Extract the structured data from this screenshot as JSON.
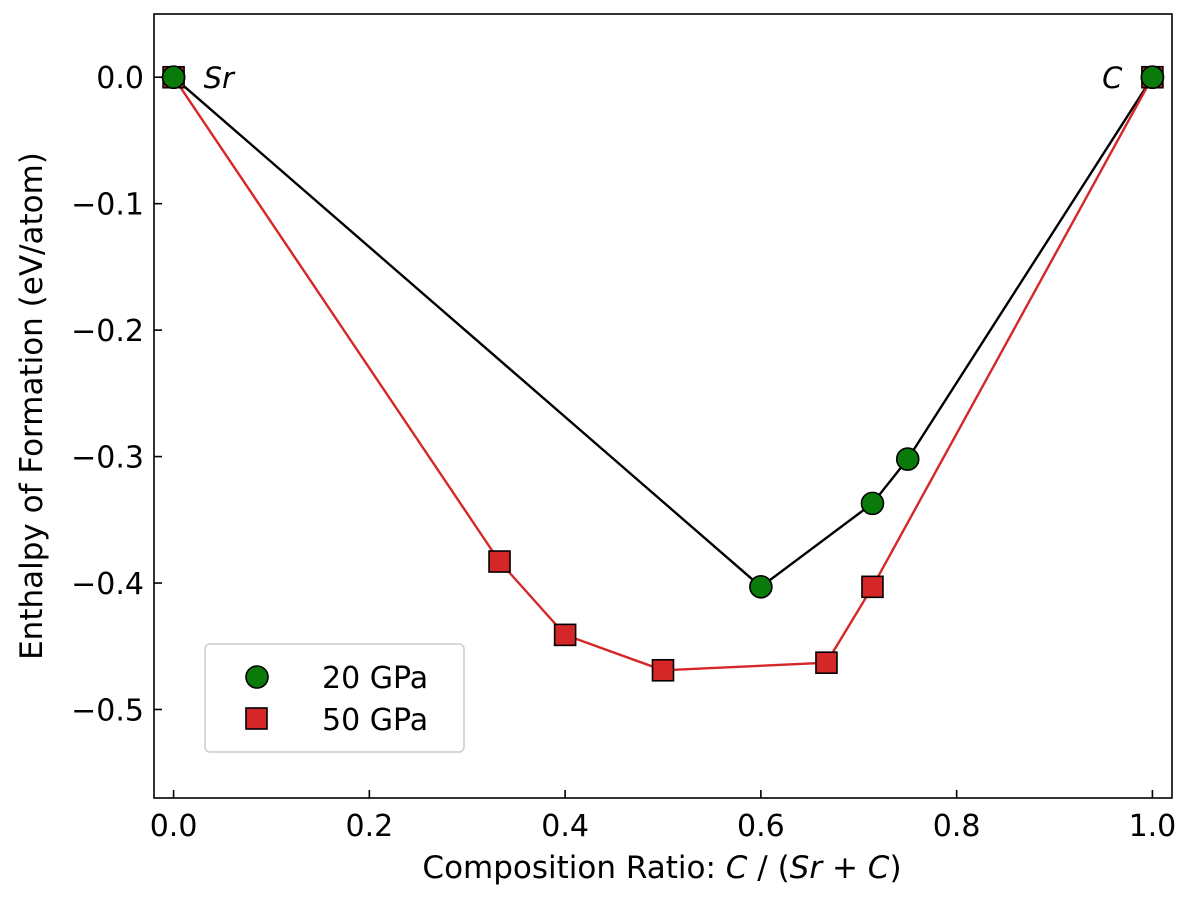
{
  "chart_data": {
    "type": "line",
    "title": "",
    "xlabel": {
      "prefix": "Composition Ratio: ",
      "numerator": "C",
      "sep": " / (",
      "a": "Sr",
      "op": " + ",
      "b": "C",
      "close": ")"
    },
    "ylabel": "Enthalpy of Formation (eV/atom)",
    "xlim": [
      -0.02,
      1.02
    ],
    "ylim": [
      -0.57,
      0.05
    ],
    "xticks": [
      0.0,
      0.2,
      0.4,
      0.6,
      0.8,
      1.0
    ],
    "xtick_labels": [
      "0.0",
      "0.2",
      "0.4",
      "0.6",
      "0.8",
      "1.0"
    ],
    "yticks": [
      0.0,
      -0.1,
      -0.2,
      -0.3,
      -0.4,
      -0.5
    ],
    "ytick_labels": [
      "0.0",
      "−0.1",
      "−0.2",
      "−0.3",
      "−0.4",
      "−0.5"
    ],
    "grid": false,
    "legend_position": "lower-left",
    "annotations": [
      {
        "text": "Sr",
        "x": 0.0,
        "y": 0.0
      },
      {
        "text": "C",
        "x": 1.0,
        "y": 0.0
      }
    ],
    "series": [
      {
        "name": "20 GPa",
        "marker": "circle",
        "color": "#0a7a0a",
        "line_color": "#000000",
        "x": [
          0.0,
          0.6,
          0.714,
          0.75,
          1.0
        ],
        "y": [
          0.0,
          -0.403,
          -0.337,
          -0.302,
          0.0
        ]
      },
      {
        "name": "50 GPa",
        "marker": "square",
        "color": "#d62728",
        "line_color": "#d62728",
        "x": [
          0.0,
          0.333,
          0.4,
          0.5,
          0.667,
          0.714,
          1.0
        ],
        "y": [
          0.0,
          -0.383,
          -0.441,
          -0.469,
          -0.463,
          -0.403,
          0.0
        ]
      }
    ]
  }
}
